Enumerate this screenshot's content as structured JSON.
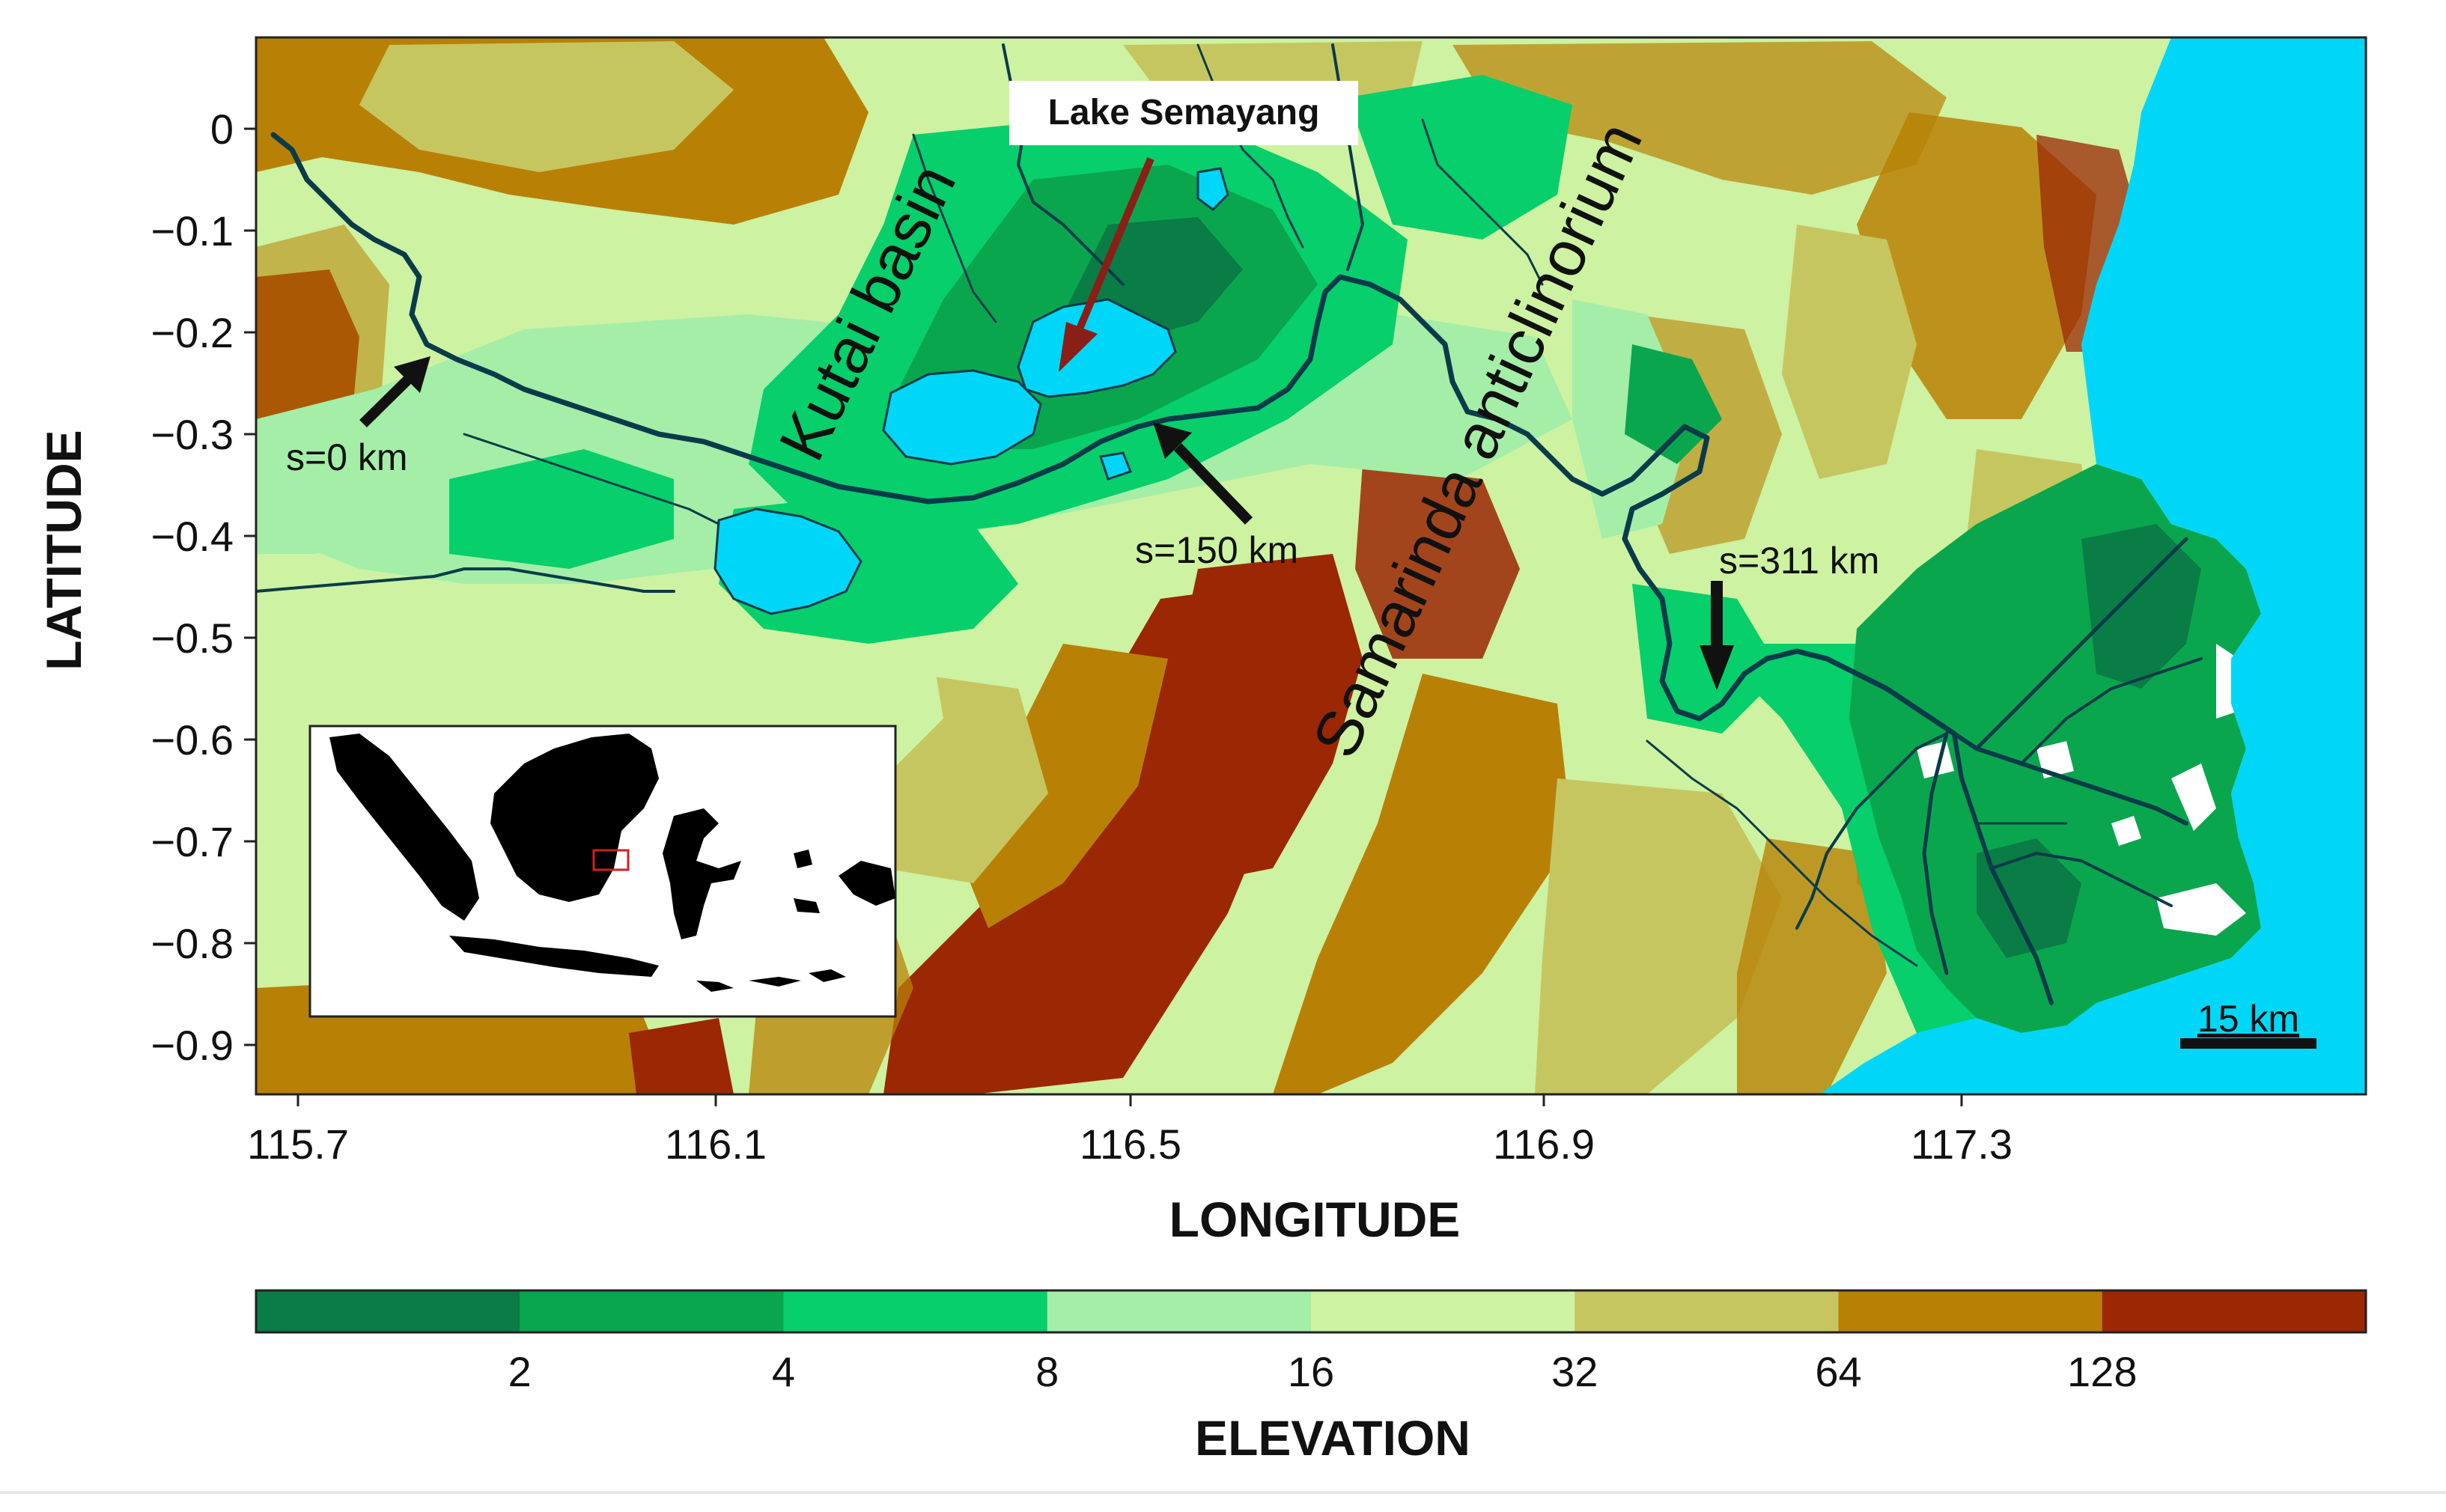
{
  "map": {
    "title": "",
    "x_axis": {
      "label": "LONGITUDE",
      "ticks": [
        "115.7",
        "116.1",
        "116.5",
        "116.9",
        "117.3"
      ]
    },
    "y_axis": {
      "label": "LATITUDE",
      "ticks": [
        "0",
        "−0.1",
        "−0.2",
        "−0.3",
        "−0.4",
        "−0.5",
        "−0.6",
        "−0.7",
        "−0.8",
        "−0.9"
      ]
    },
    "regions": {
      "kutai_basin": "Kutai basin",
      "samarinda": "Samarinda anticlinorium"
    },
    "lake_label": "Lake Semayang",
    "markers": [
      {
        "label": "s=0 km",
        "lon": 115.86,
        "lat": -0.31
      },
      {
        "label": "s=150 km",
        "lon": 116.63,
        "lat": -0.41
      },
      {
        "label": "s=311 km",
        "lon": 117.12,
        "lat": -0.41
      }
    ],
    "scale_bar": "15 km",
    "inset": {
      "name": "Indonesia locator map",
      "highlight_color": "#d21f1f"
    }
  },
  "legend": {
    "title": "ELEVATION",
    "tick_labels": [
      "2",
      "4",
      "8",
      "16",
      "32",
      "64",
      "128"
    ],
    "colors": [
      "#0a7c45",
      "#0aa64e",
      "#06cf6b",
      "#a4eea8",
      "#cdf2a1",
      "#c6c661",
      "#b88106",
      "#9b2705"
    ],
    "sea_color": "#00d7f8",
    "river_color": "#0a3b4a"
  }
}
